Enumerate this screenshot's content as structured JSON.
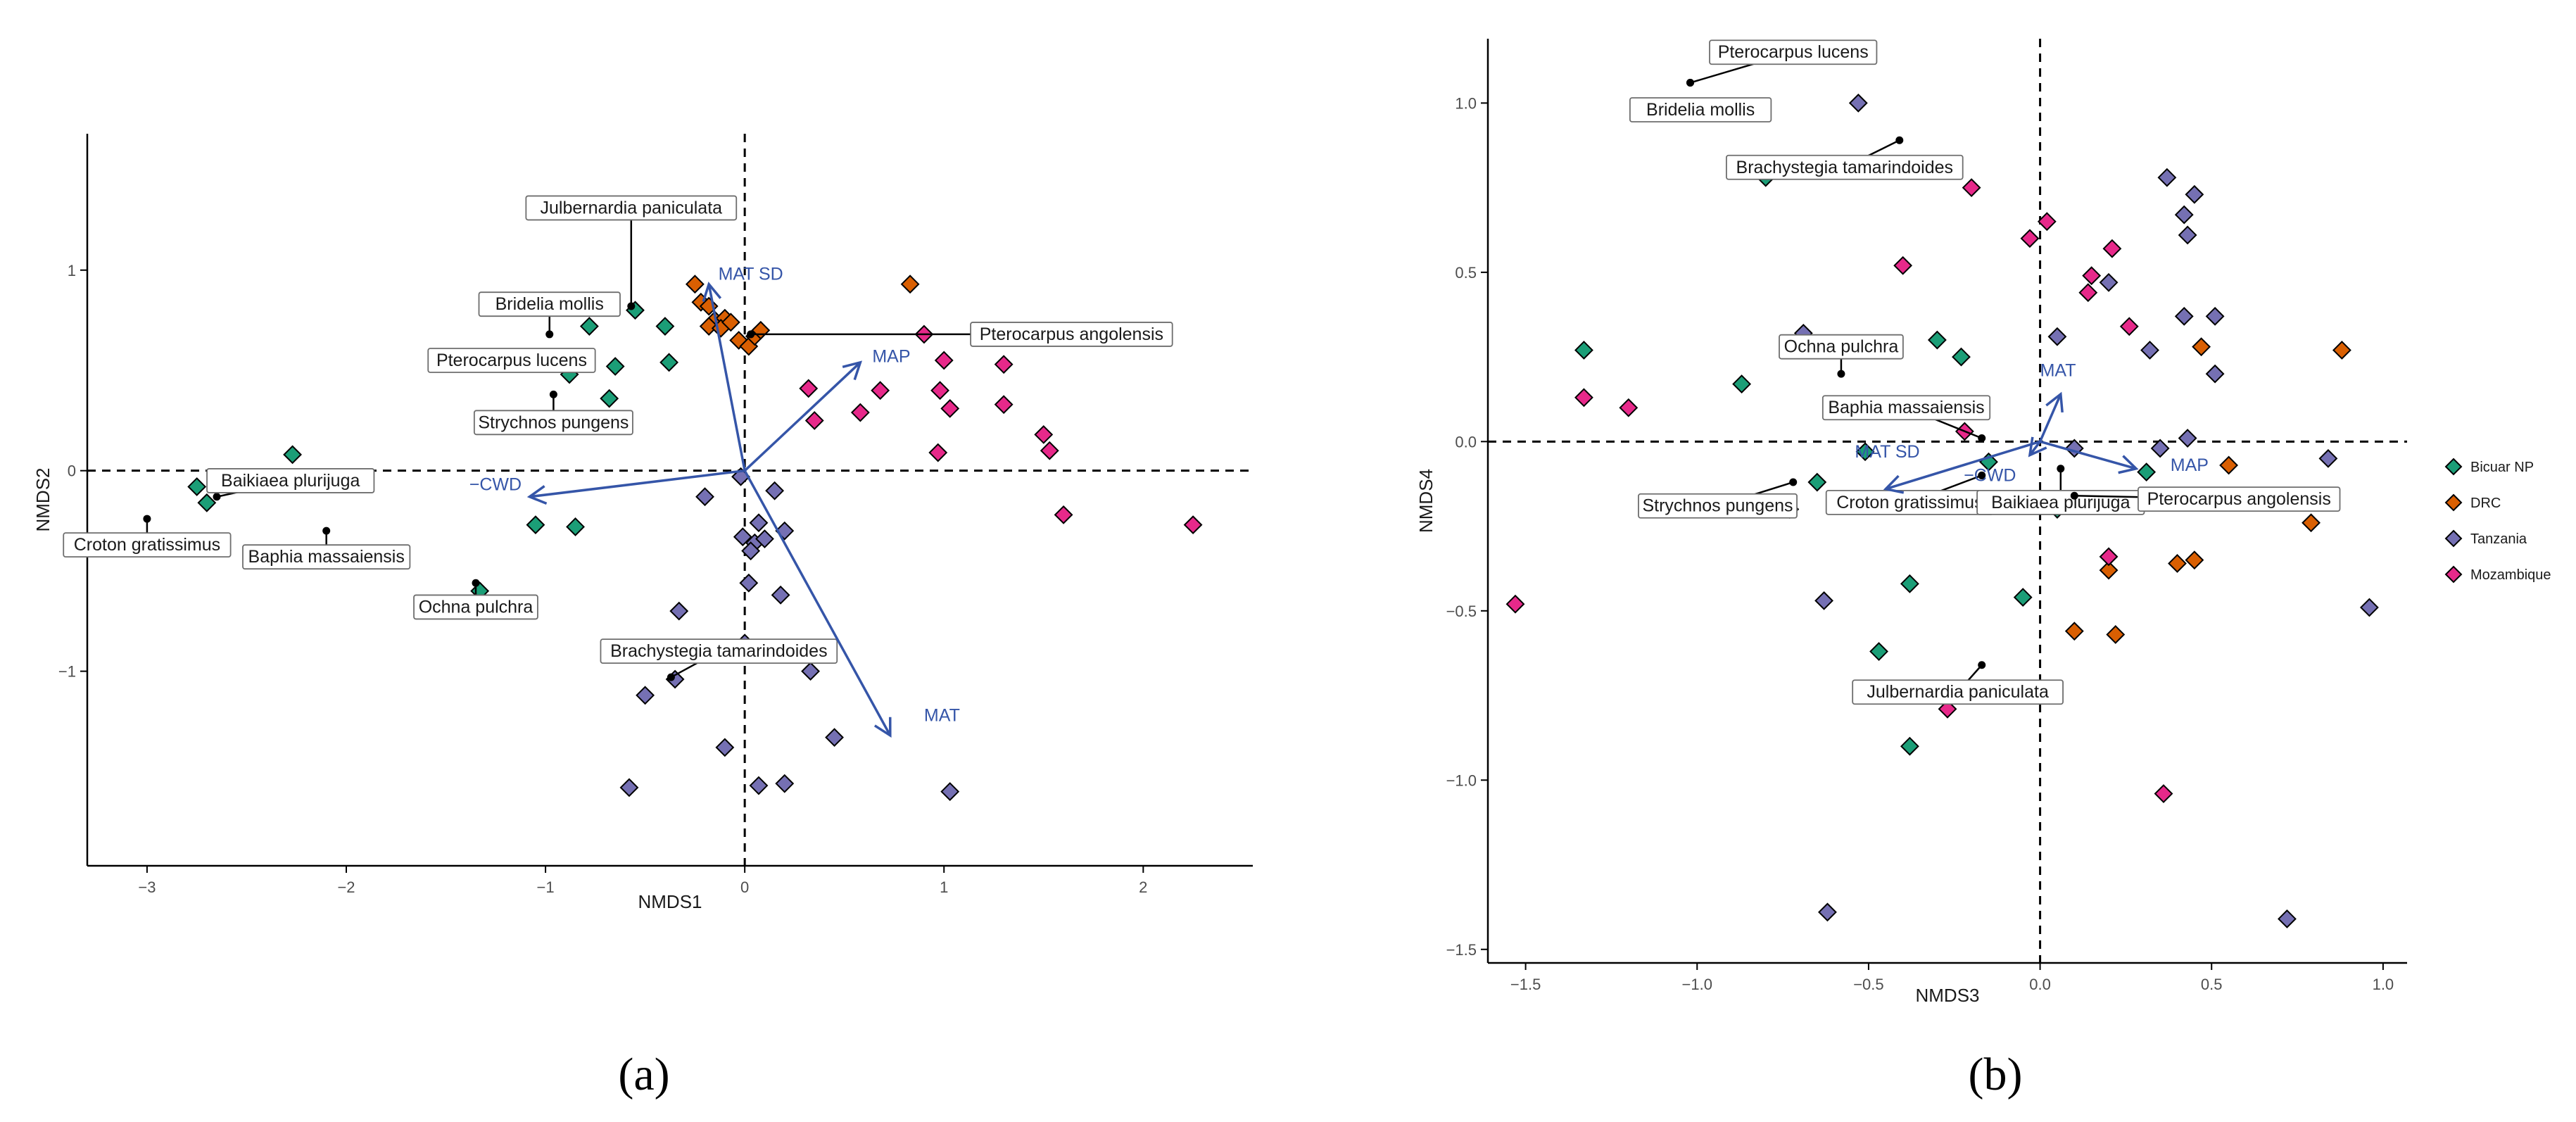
{
  "colors": {
    "vector": "#3555a8",
    "label_border": "#6e6e6e",
    "axis": "#000000"
  },
  "legend": {
    "items": [
      {
        "name": "Bicuar NP",
        "color": "#1b9e77"
      },
      {
        "name": "DRC",
        "color": "#d95f02"
      },
      {
        "name": "Tanzania",
        "color": "#7570b3"
      },
      {
        "name": "Mozambique",
        "color": "#e7298a"
      }
    ]
  },
  "chart_data": [
    {
      "type": "scatter",
      "panel": "a",
      "caption": "(a)",
      "xlabel": "NMDS1",
      "ylabel": "NMDS2",
      "xlim": [
        -3.3,
        2.55
      ],
      "ylim": [
        -1.97,
        1.68
      ],
      "xticks": [
        {
          "v": -3,
          "label": "−3"
        },
        {
          "v": -2,
          "label": "−2"
        },
        {
          "v": -1,
          "label": "−1"
        },
        {
          "v": 0,
          "label": "0"
        },
        {
          "v": 1,
          "label": "1"
        },
        {
          "v": 2,
          "label": "2"
        }
      ],
      "yticks": [
        {
          "v": -1,
          "label": "−1"
        },
        {
          "v": 0,
          "label": "0"
        },
        {
          "v": 1,
          "label": "1"
        }
      ],
      "series": [
        {
          "name": "Bicuar NP",
          "points": [
            [
              -2.27,
              0.08
            ],
            [
              -2.75,
              -0.08
            ],
            [
              -2.7,
              -0.16
            ],
            [
              -0.55,
              0.8
            ],
            [
              -0.4,
              0.72
            ],
            [
              -0.78,
              0.72
            ],
            [
              -0.65,
              0.52
            ],
            [
              -0.38,
              0.54
            ],
            [
              -0.88,
              0.48
            ],
            [
              -0.68,
              0.36
            ],
            [
              -1.05,
              -0.27
            ],
            [
              -0.85,
              -0.28
            ],
            [
              -1.33,
              -0.6
            ]
          ]
        },
        {
          "name": "DRC",
          "points": [
            [
              -0.25,
              0.93
            ],
            [
              -0.22,
              0.84
            ],
            [
              -0.18,
              0.82
            ],
            [
              -0.15,
              0.75
            ],
            [
              -0.1,
              0.76
            ],
            [
              -0.18,
              0.72
            ],
            [
              -0.12,
              0.71
            ],
            [
              -0.07,
              0.74
            ],
            [
              -0.03,
              0.65
            ],
            [
              0.02,
              0.62
            ],
            [
              0.05,
              0.67
            ],
            [
              0.08,
              0.7
            ],
            [
              0.83,
              0.93
            ]
          ]
        },
        {
          "name": "Tanzania",
          "points": [
            [
              -0.02,
              -0.03
            ],
            [
              -0.2,
              -0.13
            ],
            [
              0.15,
              -0.1
            ],
            [
              0.07,
              -0.26
            ],
            [
              -0.01,
              -0.33
            ],
            [
              0.05,
              -0.36
            ],
            [
              0.1,
              -0.34
            ],
            [
              0.2,
              -0.3
            ],
            [
              0.03,
              -0.4
            ],
            [
              0.02,
              -0.56
            ],
            [
              0.18,
              -0.62
            ],
            [
              -0.33,
              -0.7
            ],
            [
              -0.35,
              -1.04
            ],
            [
              -0.5,
              -1.12
            ],
            [
              0.33,
              -1.0
            ],
            [
              -0.1,
              -1.38
            ],
            [
              0.45,
              -1.33
            ],
            [
              0.07,
              -1.57
            ],
            [
              0.2,
              -1.56
            ],
            [
              -0.58,
              -1.58
            ],
            [
              1.03,
              -1.6
            ],
            [
              0.0,
              -0.86
            ]
          ]
        },
        {
          "name": "Mozambique",
          "points": [
            [
              0.32,
              0.41
            ],
            [
              0.35,
              0.25
            ],
            [
              0.58,
              0.29
            ],
            [
              0.68,
              0.4
            ],
            [
              0.9,
              0.68
            ],
            [
              1.0,
              0.55
            ],
            [
              0.98,
              0.4
            ],
            [
              1.03,
              0.31
            ],
            [
              0.97,
              0.09
            ],
            [
              1.3,
              0.53
            ],
            [
              1.3,
              0.33
            ],
            [
              1.5,
              0.18
            ],
            [
              1.53,
              0.1
            ],
            [
              1.6,
              -0.22
            ],
            [
              2.25,
              -0.27
            ]
          ]
        }
      ],
      "vectors": [
        {
          "label": "MAT SD",
          "dx": -0.18,
          "dy": 0.93,
          "tx": 0.03,
          "ty": 0.98,
          "anchor": "middle"
        },
        {
          "label": "MAP",
          "dx": 0.58,
          "dy": 0.54,
          "tx": 0.64,
          "ty": 0.57,
          "anchor": "start"
        },
        {
          "label": "−CWD",
          "dx": -1.08,
          "dy": -0.13,
          "tx": -1.12,
          "ty": -0.07,
          "anchor": "end"
        },
        {
          "label": "MAT",
          "dx": 0.73,
          "dy": -1.32,
          "tx": 0.9,
          "ty": -1.22,
          "anchor": "start"
        }
      ],
      "species": [
        {
          "name": "Julbernardia paniculata",
          "px": -0.57,
          "py": 0.82,
          "lx": -0.57,
          "ly": 1.31,
          "line": "vertical"
        },
        {
          "name": "Bridelia mollis",
          "px": -0.98,
          "py": 0.68,
          "lx": -0.98,
          "ly": 0.83,
          "line": "direct"
        },
        {
          "name": "Pterocarpus lucens",
          "px": -0.98,
          "py": 0.55,
          "lx": -1.17,
          "ly": 0.55,
          "line": "direct"
        },
        {
          "name": "Strychnos pungens",
          "px": -0.96,
          "py": 0.38,
          "lx": -0.96,
          "ly": 0.24,
          "line": "direct"
        },
        {
          "name": "Pterocarpus angolensis",
          "px": 0.03,
          "py": 0.68,
          "lx": 1.64,
          "ly": 0.68,
          "line": "direct"
        },
        {
          "name": "Baikiaea plurijuga",
          "px": -2.65,
          "py": -0.13,
          "lx": -2.28,
          "ly": -0.05,
          "line": "direct"
        },
        {
          "name": "Croton gratissimus",
          "px": -3.0,
          "py": -0.24,
          "lx": -3.0,
          "ly": -0.37,
          "line": "direct"
        },
        {
          "name": "Baphia massaiensis",
          "px": -2.1,
          "py": -0.3,
          "lx": -2.1,
          "ly": -0.43,
          "line": "direct"
        },
        {
          "name": "Ochna pulchra",
          "px": -1.35,
          "py": -0.56,
          "lx": -1.35,
          "ly": -0.68,
          "line": "direct"
        },
        {
          "name": "Brachystegia tamarindoides",
          "px": -0.37,
          "py": -1.03,
          "lx": -0.13,
          "ly": -0.9,
          "line": "direct"
        }
      ]
    },
    {
      "type": "scatter",
      "panel": "b",
      "caption": "(b)",
      "xlabel": "NMDS3",
      "ylabel": "NMDS4",
      "xlim": [
        -1.61,
        1.07
      ],
      "ylim": [
        -1.54,
        1.19
      ],
      "xticks": [
        {
          "v": -1.5,
          "label": "−1.5"
        },
        {
          "v": -1,
          "label": "−1.0"
        },
        {
          "v": -0.5,
          "label": "−0.5"
        },
        {
          "v": 0,
          "label": "0.0"
        },
        {
          "v": 0.5,
          "label": "0.5"
        },
        {
          "v": 1,
          "label": "1.0"
        }
      ],
      "yticks": [
        {
          "v": -1.5,
          "label": "−1.5"
        },
        {
          "v": -1,
          "label": "−1.0"
        },
        {
          "v": -0.5,
          "label": "−0.5"
        },
        {
          "v": 0,
          "label": "0.0"
        },
        {
          "v": 0.5,
          "label": "0.5"
        },
        {
          "v": 1,
          "label": "1.0"
        }
      ],
      "series": [
        {
          "name": "Bicuar NP",
          "points": [
            [
              -0.8,
              0.78
            ],
            [
              -1.33,
              0.27
            ],
            [
              -0.87,
              0.17
            ],
            [
              -0.3,
              0.3
            ],
            [
              -0.23,
              0.25
            ],
            [
              -0.51,
              -0.03
            ],
            [
              -0.65,
              -0.12
            ],
            [
              -0.73,
              -0.2
            ],
            [
              -0.38,
              -0.42
            ],
            [
              -0.05,
              -0.46
            ],
            [
              -0.47,
              -0.62
            ],
            [
              -0.38,
              -0.9
            ],
            [
              -0.15,
              -0.06
            ],
            [
              0.05,
              -0.2
            ],
            [
              0.31,
              -0.09
            ]
          ]
        },
        {
          "name": "DRC",
          "points": [
            [
              0.88,
              0.27
            ],
            [
              0.47,
              0.28
            ],
            [
              0.55,
              -0.07
            ],
            [
              0.79,
              -0.24
            ],
            [
              0.45,
              -0.35
            ],
            [
              0.4,
              -0.36
            ],
            [
              0.2,
              -0.38
            ],
            [
              0.1,
              -0.56
            ],
            [
              0.22,
              -0.57
            ]
          ]
        },
        {
          "name": "Tanzania",
          "points": [
            [
              -0.53,
              1.0
            ],
            [
              0.37,
              0.78
            ],
            [
              0.45,
              0.73
            ],
            [
              0.42,
              0.67
            ],
            [
              0.43,
              0.61
            ],
            [
              0.51,
              0.37
            ],
            [
              0.42,
              0.37
            ],
            [
              0.2,
              0.47
            ],
            [
              0.05,
              0.31
            ],
            [
              0.32,
              0.27
            ],
            [
              0.51,
              0.2
            ],
            [
              0.35,
              -0.02
            ],
            [
              0.43,
              0.01
            ],
            [
              0.84,
              -0.05
            ],
            [
              0.96,
              -0.49
            ],
            [
              -0.69,
              0.32
            ],
            [
              0.72,
              -1.41
            ],
            [
              -0.62,
              -1.39
            ],
            [
              -0.63,
              -0.47
            ],
            [
              0.1,
              -0.02
            ]
          ]
        },
        {
          "name": "Mozambique",
          "points": [
            [
              -0.2,
              0.75
            ],
            [
              -0.03,
              0.6
            ],
            [
              -0.4,
              0.52
            ],
            [
              0.02,
              0.65
            ],
            [
              0.21,
              0.57
            ],
            [
              0.15,
              0.49
            ],
            [
              0.14,
              0.44
            ],
            [
              0.26,
              0.34
            ],
            [
              -1.33,
              0.13
            ],
            [
              -1.2,
              0.1
            ],
            [
              -0.22,
              0.03
            ],
            [
              -1.53,
              -0.48
            ],
            [
              -0.27,
              -0.79
            ],
            [
              0.2,
              -0.34
            ],
            [
              0.36,
              -1.04
            ]
          ]
        }
      ],
      "vectors": [
        {
          "label": "MAT",
          "dx": 0.06,
          "dy": 0.14,
          "tx": 0.0,
          "ty": 0.21,
          "anchor": "start"
        },
        {
          "label": "MAT SD",
          "dx": -0.45,
          "dy": -0.14,
          "tx": -0.54,
          "ty": -0.03,
          "anchor": "start"
        },
        {
          "label": "−CWD",
          "dx": -0.03,
          "dy": -0.04,
          "tx": -0.07,
          "ty": -0.1,
          "anchor": "end"
        },
        {
          "label": "MAP",
          "dx": 0.28,
          "dy": -0.08,
          "tx": 0.38,
          "ty": -0.07,
          "anchor": "start"
        }
      ],
      "species": [
        {
          "name": "Pterocarpus lucens",
          "px": -1.02,
          "py": 1.06,
          "lx": -0.72,
          "ly": 1.15,
          "line": "direct"
        },
        {
          "name": "Bridelia mollis",
          "px": -1.02,
          "py": 1.06,
          "lx": -0.99,
          "ly": 0.98,
          "line": "none"
        },
        {
          "name": "Brachystegia tamarindoides",
          "px": -0.41,
          "py": 0.89,
          "lx": -0.57,
          "ly": 0.81,
          "line": "direct"
        },
        {
          "name": "Ochna pulchra",
          "px": -0.58,
          "py": 0.2,
          "lx": -0.58,
          "ly": 0.28,
          "line": "direct"
        },
        {
          "name": "Baphia massaiensis",
          "px": -0.17,
          "py": 0.01,
          "lx": -0.39,
          "ly": 0.1,
          "line": "direct"
        },
        {
          "name": "Strychnos pungens",
          "px": -0.72,
          "py": -0.12,
          "lx": -0.94,
          "ly": -0.19,
          "line": "direct"
        },
        {
          "name": "Croton gratissimus",
          "px": -0.17,
          "py": -0.1,
          "lx": -0.38,
          "ly": -0.18,
          "line": "direct"
        },
        {
          "name": "Baikiaea plurijuga",
          "px": 0.06,
          "py": -0.08,
          "lx": 0.06,
          "ly": -0.18,
          "line": "direct"
        },
        {
          "name": "Pterocarpus angolensis",
          "px": 0.1,
          "py": -0.16,
          "lx": 0.58,
          "ly": -0.17,
          "line": "direct"
        },
        {
          "name": "Julbernardia paniculata",
          "px": -0.17,
          "py": -0.66,
          "lx": -0.24,
          "ly": -0.74,
          "line": "direct"
        }
      ]
    }
  ]
}
